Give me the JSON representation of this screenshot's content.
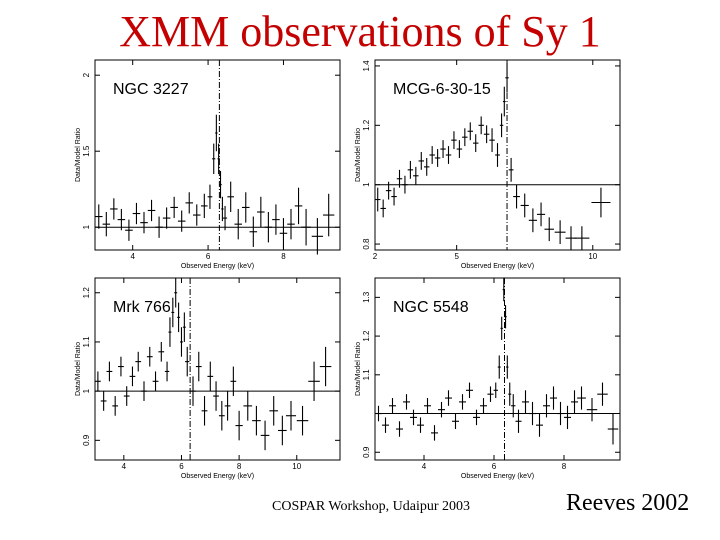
{
  "slide": {
    "title": "XMM observations of Sy 1",
    "footer_left": "COSPAR Workshop, Udaipur 2003",
    "footer_right": "Reeves 2002"
  },
  "colors": {
    "title": "#c40000",
    "plot": "#000000"
  },
  "chart_data": [
    {
      "type": "scatter",
      "title": "NGC 3227",
      "xlabel": "Observed Energy (keV)",
      "ylabel": "Data/Model Ratio",
      "xlim": [
        3,
        9.5
      ],
      "ylim": [
        0.85,
        2.1
      ],
      "xticks": [
        4,
        6,
        8
      ],
      "yticks": [
        1,
        1.5,
        2
      ],
      "yticklabels": [
        "1",
        "1.5",
        "2"
      ],
      "reference_y": 1,
      "line_energy": 6.3,
      "x": [
        3.1,
        3.3,
        3.5,
        3.7,
        3.9,
        4.1,
        4.3,
        4.5,
        4.7,
        4.9,
        5.1,
        5.3,
        5.5,
        5.7,
        5.9,
        6.05,
        6.15,
        6.22,
        6.28,
        6.33,
        6.38,
        6.45,
        6.6,
        6.8,
        7.0,
        7.2,
        7.4,
        7.6,
        7.8,
        8.0,
        8.2,
        8.4,
        8.6,
        8.9,
        9.2
      ],
      "y": [
        1.07,
        1.02,
        1.12,
        1.05,
        0.98,
        1.09,
        1.03,
        1.11,
        1.0,
        1.06,
        1.13,
        1.04,
        1.16,
        1.08,
        1.14,
        1.2,
        1.45,
        1.62,
        1.45,
        1.28,
        1.12,
        1.06,
        1.2,
        1.02,
        1.13,
        0.97,
        1.1,
        1.0,
        1.05,
        0.96,
        1.02,
        1.14,
        1.0,
        0.94,
        1.08
      ],
      "yerr": [
        0.08,
        0.08,
        0.07,
        0.07,
        0.07,
        0.07,
        0.07,
        0.07,
        0.07,
        0.07,
        0.07,
        0.07,
        0.07,
        0.07,
        0.08,
        0.08,
        0.1,
        0.12,
        0.1,
        0.09,
        0.08,
        0.08,
        0.1,
        0.1,
        0.1,
        0.1,
        0.1,
        0.1,
        0.1,
        0.1,
        0.1,
        0.12,
        0.12,
        0.12,
        0.14
      ]
    },
    {
      "type": "scatter",
      "title": "MCG-6-30-15",
      "xlabel": "Observed Energy (keV)",
      "ylabel": "Data/Model Ratio",
      "xlim": [
        2,
        11
      ],
      "ylim": [
        0.78,
        1.42
      ],
      "xticks": [
        2,
        5,
        10
      ],
      "yticks": [
        0.8,
        1,
        1.2,
        1.4
      ],
      "yticklabels": [
        "0.8",
        "1",
        "1.2",
        "1.4"
      ],
      "reference_y": 1,
      "line_energy": 6.85,
      "x": [
        2.1,
        2.3,
        2.5,
        2.7,
        2.9,
        3.1,
        3.3,
        3.5,
        3.7,
        3.9,
        4.1,
        4.3,
        4.5,
        4.7,
        4.9,
        5.1,
        5.3,
        5.5,
        5.7,
        5.9,
        6.1,
        6.3,
        6.5,
        6.65,
        6.75,
        6.85,
        7.0,
        7.2,
        7.5,
        7.8,
        8.1,
        8.4,
        8.8,
        9.2,
        9.6,
        10.3
      ],
      "y": [
        0.95,
        0.92,
        0.98,
        0.96,
        1.02,
        1.0,
        1.05,
        1.03,
        1.08,
        1.06,
        1.1,
        1.09,
        1.12,
        1.1,
        1.15,
        1.12,
        1.16,
        1.18,
        1.14,
        1.2,
        1.17,
        1.15,
        1.1,
        1.2,
        1.28,
        1.36,
        1.05,
        0.96,
        0.93,
        0.88,
        0.9,
        0.85,
        0.84,
        0.82,
        0.82,
        0.94
      ],
      "yerr": [
        0.04,
        0.03,
        0.03,
        0.03,
        0.03,
        0.03,
        0.03,
        0.03,
        0.03,
        0.03,
        0.03,
        0.03,
        0.03,
        0.03,
        0.03,
        0.03,
        0.03,
        0.03,
        0.03,
        0.03,
        0.03,
        0.04,
        0.04,
        0.04,
        0.05,
        0.05,
        0.04,
        0.04,
        0.04,
        0.04,
        0.04,
        0.04,
        0.04,
        0.04,
        0.04,
        0.05
      ]
    },
    {
      "type": "scatter",
      "title": "Mrk 766",
      "xlabel": "Observed Energy (keV)",
      "ylabel": "Data/Model Ratio",
      "xlim": [
        3,
        11.5
      ],
      "ylim": [
        0.86,
        1.23
      ],
      "xticks": [
        4,
        6,
        8,
        10
      ],
      "yticks": [
        0.9,
        1,
        1.1,
        1.2
      ],
      "yticklabels": [
        "0.9",
        "1",
        "1.1",
        "1.2"
      ],
      "reference_y": 1,
      "line_energy": 6.3,
      "x": [
        3.1,
        3.3,
        3.5,
        3.7,
        3.9,
        4.1,
        4.3,
        4.5,
        4.7,
        4.9,
        5.1,
        5.3,
        5.5,
        5.6,
        5.7,
        5.8,
        5.9,
        6.0,
        6.1,
        6.2,
        6.4,
        6.6,
        6.8,
        7.0,
        7.2,
        7.4,
        7.6,
        7.8,
        8.0,
        8.3,
        8.6,
        8.9,
        9.2,
        9.5,
        9.8,
        10.2,
        10.6,
        11.0
      ],
      "y": [
        1.02,
        0.98,
        1.04,
        0.97,
        1.05,
        0.99,
        1.03,
        1.06,
        1.0,
        1.07,
        1.02,
        1.08,
        1.04,
        1.12,
        1.16,
        1.2,
        1.15,
        1.1,
        1.13,
        1.06,
        1.0,
        1.05,
        0.96,
        1.03,
        0.99,
        0.95,
        0.97,
        1.02,
        0.93,
        0.97,
        0.94,
        0.91,
        0.96,
        0.92,
        0.95,
        0.94,
        1.02,
        1.05
      ],
      "yerr": [
        0.02,
        0.02,
        0.02,
        0.02,
        0.02,
        0.02,
        0.02,
        0.02,
        0.02,
        0.02,
        0.02,
        0.02,
        0.02,
        0.03,
        0.03,
        0.03,
        0.03,
        0.03,
        0.03,
        0.03,
        0.03,
        0.03,
        0.03,
        0.03,
        0.03,
        0.03,
        0.03,
        0.03,
        0.03,
        0.03,
        0.03,
        0.03,
        0.03,
        0.03,
        0.03,
        0.03,
        0.04,
        0.04
      ]
    },
    {
      "type": "scatter",
      "title": "NGC 5548",
      "xlabel": "Observed Energy (keV)",
      "ylabel": "Data/Model Ratio",
      "xlim": [
        2.6,
        9.6
      ],
      "ylim": [
        0.88,
        1.35
      ],
      "xticks": [
        4,
        6,
        8
      ],
      "yticks": [
        0.9,
        1.1,
        1.2,
        1.3
      ],
      "yticklabels": [
        "0.9",
        "1.1",
        "1.2",
        "1.3"
      ],
      "reference_y": 1,
      "line_energy": 6.3,
      "x": [
        2.7,
        2.9,
        3.1,
        3.3,
        3.5,
        3.7,
        3.9,
        4.1,
        4.3,
        4.5,
        4.7,
        4.9,
        5.1,
        5.3,
        5.5,
        5.7,
        5.9,
        6.05,
        6.15,
        6.22,
        6.28,
        6.33,
        6.38,
        6.45,
        6.55,
        6.7,
        6.9,
        7.1,
        7.3,
        7.5,
        7.7,
        7.9,
        8.1,
        8.3,
        8.5,
        8.8,
        9.1,
        9.4
      ],
      "y": [
        1.0,
        0.97,
        1.02,
        0.96,
        1.03,
        0.99,
        0.97,
        1.02,
        0.95,
        1.01,
        1.04,
        0.98,
        1.03,
        1.06,
        0.99,
        1.02,
        1.05,
        1.06,
        1.12,
        1.22,
        1.32,
        1.25,
        1.12,
        1.05,
        1.02,
        0.98,
        1.03,
        1.0,
        0.97,
        1.02,
        1.04,
        1.0,
        0.99,
        1.03,
        1.04,
        1.01,
        1.05,
        0.96
      ],
      "yerr": [
        0.02,
        0.02,
        0.02,
        0.02,
        0.02,
        0.02,
        0.02,
        0.02,
        0.02,
        0.02,
        0.02,
        0.02,
        0.02,
        0.02,
        0.02,
        0.02,
        0.02,
        0.02,
        0.03,
        0.03,
        0.03,
        0.03,
        0.03,
        0.03,
        0.03,
        0.03,
        0.03,
        0.03,
        0.03,
        0.03,
        0.03,
        0.03,
        0.03,
        0.03,
        0.03,
        0.03,
        0.03,
        0.04
      ]
    }
  ]
}
